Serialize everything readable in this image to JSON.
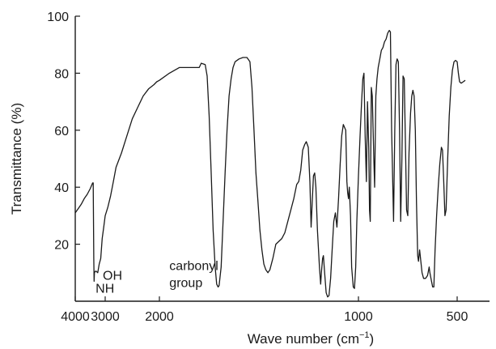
{
  "chart_data": {
    "type": "line",
    "title": "",
    "xlabel": "Wave number (cm",
    "xlabel_sup": "−1",
    "xlabel_close": ")",
    "ylabel": "Transmittance (%)",
    "xlim": [
      4000,
      400
    ],
    "ylim": [
      0,
      100
    ],
    "x_ticks": [
      4000,
      3000,
      2000,
      1000,
      500
    ],
    "x_tick_labels": [
      "4000",
      "3000",
      "2000",
      "1000",
      "500"
    ],
    "y_ticks": [
      20,
      40,
      60,
      80,
      100
    ],
    "y_tick_labels": [
      "20",
      "40",
      "60",
      "80",
      "100"
    ],
    "grid": false,
    "annotations": [
      {
        "text": "NH",
        "x": 3320,
        "y": 3
      },
      {
        "text": "OH",
        "x": 3080,
        "y": 7.5
      },
      {
        "text": "carbonyl",
        "x": 1950,
        "y": 11
      },
      {
        "text": "group",
        "x": 1950,
        "y": 5
      }
    ],
    "series": [
      {
        "points": [
          [
            4000,
            31
          ],
          [
            3900,
            32.5
          ],
          [
            3800,
            34
          ],
          [
            3700,
            36
          ],
          [
            3600,
            37.5
          ],
          [
            3500,
            39.5
          ],
          [
            3420,
            41.5
          ],
          [
            3400,
            41.5
          ],
          [
            3380,
            15
          ],
          [
            3370,
            7
          ],
          [
            3360,
            10
          ],
          [
            3330,
            10.5
          ],
          [
            3300,
            10.5
          ],
          [
            3250,
            10
          ],
          [
            3200,
            13
          ],
          [
            3150,
            15
          ],
          [
            3100,
            22
          ],
          [
            3050,
            26
          ],
          [
            3000,
            30
          ],
          [
            2950,
            33
          ],
          [
            2900,
            37
          ],
          [
            2850,
            42
          ],
          [
            2800,
            47
          ],
          [
            2700,
            52
          ],
          [
            2600,
            58
          ],
          [
            2500,
            64
          ],
          [
            2400,
            68
          ],
          [
            2300,
            72
          ],
          [
            2200,
            74.5
          ],
          [
            2100,
            76
          ],
          [
            2050,
            77
          ],
          [
            2000,
            77.5
          ],
          [
            1950,
            80
          ],
          [
            1900,
            82
          ],
          [
            1850,
            82
          ],
          [
            1800,
            82
          ],
          [
            1790,
            83.5
          ],
          [
            1770,
            83
          ],
          [
            1760,
            79
          ],
          [
            1750,
            65
          ],
          [
            1740,
            45
          ],
          [
            1730,
            25
          ],
          [
            1720,
            12
          ],
          [
            1712,
            6
          ],
          [
            1705,
            5
          ],
          [
            1700,
            5.5
          ],
          [
            1690,
            12
          ],
          [
            1680,
            28
          ],
          [
            1670,
            45
          ],
          [
            1660,
            60
          ],
          [
            1650,
            72
          ],
          [
            1640,
            78
          ],
          [
            1630,
            82
          ],
          [
            1620,
            84
          ],
          [
            1600,
            85
          ],
          [
            1580,
            85.5
          ],
          [
            1560,
            85.5
          ],
          [
            1545,
            84
          ],
          [
            1535,
            75
          ],
          [
            1525,
            60
          ],
          [
            1515,
            45
          ],
          [
            1505,
            35
          ],
          [
            1495,
            25
          ],
          [
            1485,
            18
          ],
          [
            1475,
            13
          ],
          [
            1465,
            11
          ],
          [
            1455,
            10
          ],
          [
            1445,
            11
          ],
          [
            1430,
            15
          ],
          [
            1415,
            20
          ],
          [
            1400,
            21
          ],
          [
            1385,
            22
          ],
          [
            1370,
            24
          ],
          [
            1355,
            28
          ],
          [
            1340,
            32
          ],
          [
            1325,
            36
          ],
          [
            1310,
            41
          ],
          [
            1300,
            42
          ],
          [
            1290,
            46
          ],
          [
            1280,
            53
          ],
          [
            1270,
            55
          ],
          [
            1262,
            56
          ],
          [
            1252,
            54
          ],
          [
            1244,
            42
          ],
          [
            1238,
            26
          ],
          [
            1232,
            35
          ],
          [
            1226,
            44
          ],
          [
            1220,
            45
          ],
          [
            1214,
            40
          ],
          [
            1206,
            25
          ],
          [
            1196,
            12
          ],
          [
            1190,
            6
          ],
          [
            1186,
            10
          ],
          [
            1180,
            15
          ],
          [
            1176,
            16
          ],
          [
            1170,
            10
          ],
          [
            1162,
            3
          ],
          [
            1155,
            1.5
          ],
          [
            1148,
            2
          ],
          [
            1140,
            8
          ],
          [
            1132,
            18
          ],
          [
            1124,
            28
          ],
          [
            1116,
            31
          ],
          [
            1108,
            26
          ],
          [
            1100,
            36
          ],
          [
            1092,
            48
          ],
          [
            1084,
            58
          ],
          [
            1076,
            62
          ],
          [
            1070,
            61
          ],
          [
            1064,
            60
          ],
          [
            1058,
            42
          ],
          [
            1054,
            38
          ],
          [
            1050,
            36
          ],
          [
            1046,
            40
          ],
          [
            1040,
            30
          ],
          [
            1034,
            12
          ],
          [
            1026,
            5
          ],
          [
            1020,
            4.5
          ],
          [
            1014,
            12
          ],
          [
            1008,
            28
          ],
          [
            1000,
            44
          ],
          [
            992,
            58
          ],
          [
            984,
            70
          ],
          [
            978,
            78
          ],
          [
            972,
            80
          ],
          [
            966,
            58
          ],
          [
            960,
            42
          ],
          [
            954,
            70
          ],
          [
            948,
            54
          ],
          [
            944,
            32
          ],
          [
            940,
            28
          ],
          [
            935,
            75
          ],
          [
            930,
            72
          ],
          [
            922,
            50
          ],
          [
            918,
            40
          ],
          [
            912,
            72
          ],
          [
            906,
            78
          ],
          [
            900,
            82
          ],
          [
            892,
            85
          ],
          [
            884,
            88
          ],
          [
            876,
            89
          ],
          [
            868,
            91
          ],
          [
            860,
            92
          ],
          [
            852,
            94
          ],
          [
            844,
            95
          ],
          [
            838,
            94.5
          ],
          [
            832,
            60
          ],
          [
            826,
            40
          ],
          [
            822,
            28
          ],
          [
            816,
            60
          ],
          [
            810,
            83
          ],
          [
            804,
            85
          ],
          [
            798,
            84
          ],
          [
            792,
            60
          ],
          [
            786,
            28
          ],
          [
            780,
            50
          ],
          [
            774,
            79
          ],
          [
            768,
            78
          ],
          [
            762,
            55
          ],
          [
            756,
            32
          ],
          [
            750,
            30
          ],
          [
            744,
            52
          ],
          [
            736,
            66
          ],
          [
            730,
            72
          ],
          [
            724,
            74
          ],
          [
            718,
            72
          ],
          [
            712,
            60
          ],
          [
            706,
            35
          ],
          [
            700,
            16
          ],
          [
            696,
            14
          ],
          [
            690,
            18
          ],
          [
            684,
            14
          ],
          [
            678,
            10
          ],
          [
            670,
            8
          ],
          [
            660,
            8
          ],
          [
            650,
            9
          ],
          [
            642,
            12
          ],
          [
            638,
            10
          ],
          [
            630,
            7
          ],
          [
            624,
            5
          ],
          [
            618,
            5
          ],
          [
            612,
            18
          ],
          [
            604,
            30
          ],
          [
            596,
            40
          ],
          [
            588,
            48
          ],
          [
            580,
            54
          ],
          [
            574,
            53
          ],
          [
            568,
            42
          ],
          [
            562,
            30
          ],
          [
            556,
            32
          ],
          [
            548,
            50
          ],
          [
            540,
            65
          ],
          [
            532,
            75
          ],
          [
            524,
            81
          ],
          [
            516,
            84
          ],
          [
            508,
            84.5
          ],
          [
            500,
            84
          ],
          [
            494,
            80
          ],
          [
            488,
            77
          ],
          [
            480,
            76.5
          ],
          [
            470,
            77
          ],
          [
            460,
            77.5
          ]
        ]
      }
    ]
  }
}
